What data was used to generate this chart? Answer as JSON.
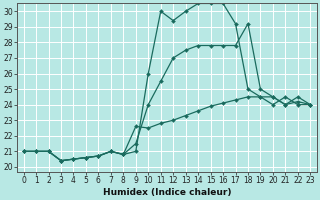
{
  "xlabel": "Humidex (Indice chaleur)",
  "background_color": "#b8e8e4",
  "line_color": "#1a6b5e",
  "grid_color": "#ffffff",
  "line1_x": [
    0,
    1,
    2,
    3,
    4,
    5,
    6,
    7,
    8,
    9,
    10,
    11,
    12,
    13,
    14,
    15,
    16,
    17,
    18,
    19,
    20,
    21,
    22,
    23
  ],
  "line1_y": [
    21,
    21,
    21,
    20.4,
    20.5,
    20.6,
    20.7,
    21.0,
    20.8,
    21.0,
    26.0,
    30.0,
    29.4,
    30.0,
    30.5,
    30.5,
    30.5,
    29.2,
    25.0,
    24.5,
    24.0,
    24.5,
    24.0,
    24.0
  ],
  "line2_x": [
    0,
    1,
    2,
    3,
    4,
    5,
    6,
    7,
    8,
    9,
    10,
    11,
    12,
    13,
    14,
    15,
    16,
    17,
    18,
    19,
    20,
    21,
    22,
    23
  ],
  "line2_y": [
    21,
    21,
    21,
    20.4,
    20.5,
    20.6,
    20.7,
    21.0,
    20.8,
    21.5,
    24.0,
    25.5,
    27.0,
    27.5,
    27.8,
    27.8,
    27.8,
    27.8,
    29.2,
    25.0,
    24.5,
    24.0,
    24.5,
    24.0
  ],
  "line3_x": [
    0,
    1,
    2,
    3,
    4,
    5,
    6,
    7,
    8,
    9,
    10,
    11,
    12,
    13,
    14,
    15,
    16,
    17,
    18,
    19,
    20,
    21,
    22,
    23
  ],
  "line3_y": [
    21,
    21,
    21,
    20.4,
    20.5,
    20.6,
    20.7,
    21.0,
    20.8,
    22.6,
    22.5,
    22.8,
    23.0,
    23.3,
    23.6,
    23.9,
    24.1,
    24.3,
    24.5,
    24.5,
    24.5,
    24.0,
    24.2,
    24.0
  ],
  "xticks": [
    0,
    1,
    2,
    3,
    4,
    5,
    6,
    7,
    8,
    9,
    10,
    11,
    12,
    13,
    14,
    15,
    16,
    17,
    18,
    19,
    20,
    21,
    22,
    23
  ],
  "yticks": [
    20,
    21,
    22,
    23,
    24,
    25,
    26,
    27,
    28,
    29,
    30
  ],
  "xlim": [
    -0.5,
    23.5
  ],
  "ylim": [
    19.7,
    30.5
  ],
  "marker": "D",
  "markersize": 2.0,
  "linewidth": 0.9,
  "xlabel_fontsize": 6.5,
  "tick_fontsize": 5.5
}
